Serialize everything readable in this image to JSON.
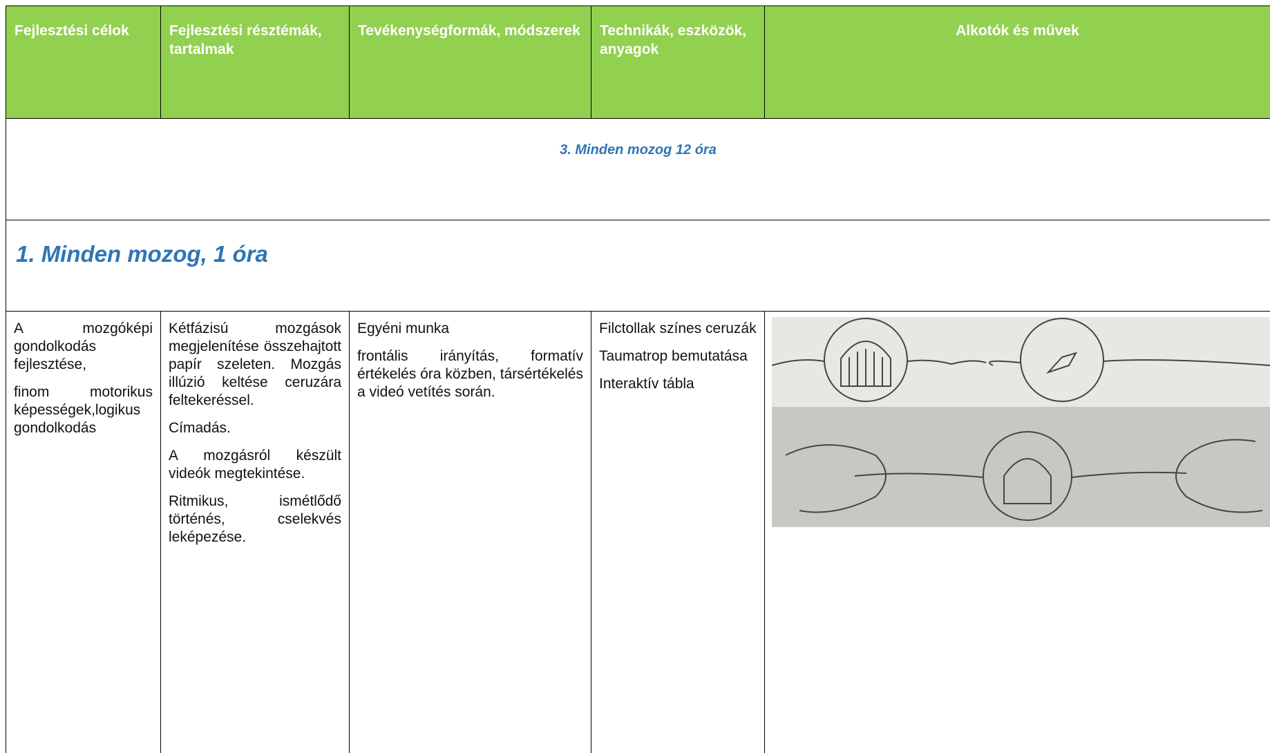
{
  "table": {
    "header": [
      "Fejlesztési célok",
      "Fejlesztési résztémák, tartalmak",
      "Tevékenységformák, módszerek",
      "Technikák, eszközök, anyagok",
      "Alkotók és művek"
    ],
    "section": "3. Minden mozog 12 óra",
    "lesson": "1. Minden mozog, 1 óra",
    "rows": [
      [
        [
          "A mozgóképi gondolkodás fejlesztése,",
          "finom motorikus képességek,logikus gondolkodás"
        ],
        [
          "Kétfázisú mozgások megjelenítése összehajtott papír szeleten. Mozgás illúzió keltése ceruzára feltekeréssel.",
          "Címadás.",
          "A mozgásról készült videók megtekintése.",
          "Ritmikus, ismétlődő történés, cselekvés leképezése."
        ],
        [
          "Egyéni munka",
          "frontális irányítás, formatív értékelés óra közben, társértékelés a videó vetítés során."
        ],
        [
          "Filctollak színes ceruzák",
          "Taumatrop bemutatása",
          "Interaktív tábla"
        ]
      ]
    ]
  }
}
